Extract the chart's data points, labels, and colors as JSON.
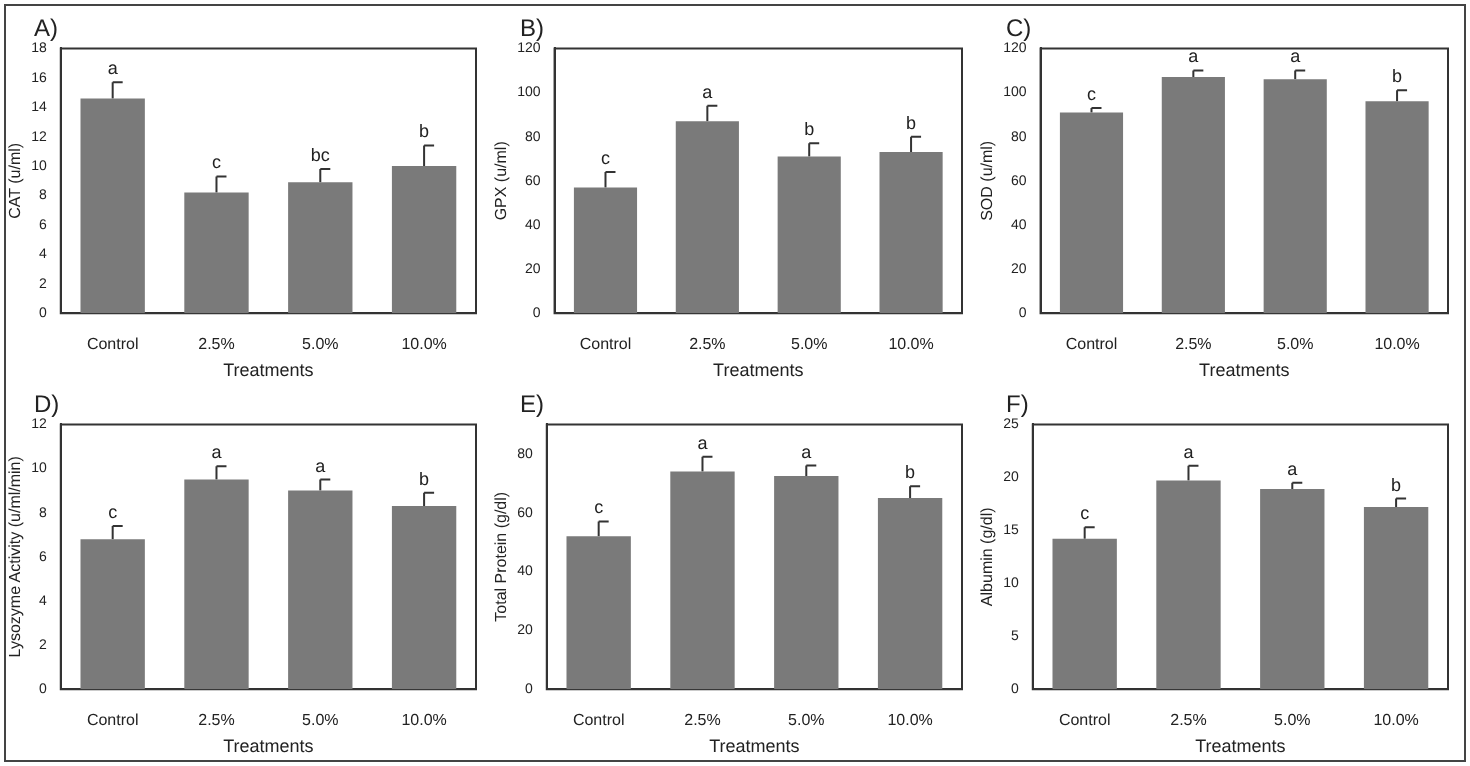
{
  "chart_data": [
    {
      "type": "bar",
      "title": "A)",
      "xlabel": "Treatments",
      "ylabel": "CAT (u/ml)",
      "categories": [
        "Control",
        "2.5%",
        "5.0%",
        "10.0%"
      ],
      "values": [
        14.6,
        8.2,
        8.9,
        10.0
      ],
      "errors": [
        [
          14.6,
          15.7
        ],
        [
          8.2,
          9.3
        ],
        [
          8.9,
          9.8
        ],
        [
          10.0,
          11.4
        ]
      ],
      "color": "#7a7a7a",
      "ylim": [
        0,
        18
      ],
      "yticks": [
        0,
        2,
        4,
        6,
        8,
        10,
        12,
        14,
        16,
        18
      ],
      "grid": false,
      "annotations": [
        {
          "text": "a",
          "x": "Control",
          "y": 15.7
        },
        {
          "text": "c",
          "x": "2.5%",
          "y": 9.3
        },
        {
          "text": "bc",
          "x": "5.0%",
          "y": 9.8
        },
        {
          "text": "b",
          "x": "10.0%",
          "y": 11.4
        }
      ]
    },
    {
      "type": "bar",
      "title": "B)",
      "xlabel": "Treatments",
      "ylabel": "GPX (u/ml)",
      "categories": [
        "Control",
        "2.5%",
        "5.0%",
        "10.0%"
      ],
      "values": [
        57,
        87,
        71,
        73
      ],
      "errors": [
        [
          57,
          64
        ],
        [
          87,
          94
        ],
        [
          71,
          77
        ],
        [
          73,
          80
        ]
      ],
      "color": "#7a7a7a",
      "ylim": [
        0,
        120
      ],
      "yticks": [
        0,
        20,
        40,
        60,
        80,
        100,
        120
      ],
      "grid": false,
      "annotations": [
        {
          "text": "c",
          "x": "Control",
          "y": 64
        },
        {
          "text": "a",
          "x": "2.5%",
          "y": 94
        },
        {
          "text": "b",
          "x": "5.0%",
          "y": 77
        },
        {
          "text": "b",
          "x": "10.0%",
          "y": 80
        }
      ]
    },
    {
      "type": "bar",
      "title": "C)",
      "xlabel": "Treatments",
      "ylabel": "SOD (u/ml)",
      "categories": [
        "Control",
        "2.5%",
        "5.0%",
        "10.0%"
      ],
      "values": [
        91,
        107,
        106,
        96
      ],
      "errors": [
        [
          91,
          93
        ],
        [
          107,
          110
        ],
        [
          106,
          110
        ],
        [
          96,
          101
        ]
      ],
      "color": "#7a7a7a",
      "ylim": [
        0,
        120
      ],
      "yticks": [
        0,
        20,
        40,
        60,
        80,
        100,
        120
      ],
      "grid": false,
      "annotations": [
        {
          "text": "c",
          "x": "Control",
          "y": 93
        },
        {
          "text": "a",
          "x": "2.5%",
          "y": 110
        },
        {
          "text": "a",
          "x": "5.0%",
          "y": 110
        },
        {
          "text": "b",
          "x": "10.0%",
          "y": 101
        }
      ]
    },
    {
      "type": "bar",
      "title": "D)",
      "xlabel": "Treatments",
      "ylabel": "Lysozyme Activity (u/ml/min)",
      "categories": [
        "Control",
        "2.5%",
        "5.0%",
        "10.0%"
      ],
      "values": [
        6.8,
        9.5,
        9.0,
        8.3
      ],
      "errors": [
        [
          6.8,
          7.4
        ],
        [
          9.5,
          10.1
        ],
        [
          9.0,
          9.5
        ],
        [
          8.3,
          8.9
        ]
      ],
      "color": "#7a7a7a",
      "ylim": [
        0,
        12
      ],
      "yticks": [
        0,
        2,
        4,
        6,
        8,
        10,
        12
      ],
      "grid": false,
      "annotations": [
        {
          "text": "c",
          "x": "Control",
          "y": 7.4
        },
        {
          "text": "a",
          "x": "2.5%",
          "y": 10.1
        },
        {
          "text": "a",
          "x": "5.0%",
          "y": 9.5
        },
        {
          "text": "b",
          "x": "10.0%",
          "y": 8.9
        }
      ]
    },
    {
      "type": "bar",
      "title": "E)",
      "xlabel": "Treatments",
      "ylabel": "Total Protein (g/dl)",
      "categories": [
        "Control",
        "2.5%",
        "5.0%",
        "10.0%"
      ],
      "values": [
        52,
        74,
        72.5,
        65
      ],
      "errors": [
        [
          52,
          57
        ],
        [
          74,
          79
        ],
        [
          72.5,
          76
        ],
        [
          65,
          69
        ]
      ],
      "color": "#7a7a7a",
      "ylim": [
        0,
        90
      ],
      "yticks": [
        0,
        20,
        40,
        60,
        80
      ],
      "grid": false,
      "annotations": [
        {
          "text": "c",
          "x": "Control",
          "y": 57
        },
        {
          "text": "a",
          "x": "2.5%",
          "y": 79
        },
        {
          "text": "a",
          "x": "5.0%",
          "y": 76
        },
        {
          "text": "b",
          "x": "10.0%",
          "y": 69
        }
      ]
    },
    {
      "type": "bar",
      "title": "F)",
      "xlabel": "Treatments",
      "ylabel": "Albumin (g/dl)",
      "categories": [
        "Control",
        "2.5%",
        "5.0%",
        "10.0%"
      ],
      "values": [
        14.2,
        19.7,
        18.9,
        17.2
      ],
      "errors": [
        [
          14.2,
          15.3
        ],
        [
          19.7,
          21.1
        ],
        [
          18.9,
          19.5
        ],
        [
          17.2,
          18.0
        ]
      ],
      "color": "#7a7a7a",
      "ylim": [
        0,
        25
      ],
      "yticks": [
        0,
        5,
        10,
        15,
        20,
        25
      ],
      "grid": false,
      "annotations": [
        {
          "text": "c",
          "x": "Control",
          "y": 15.3
        },
        {
          "text": "a",
          "x": "2.5%",
          "y": 21.1
        },
        {
          "text": "a",
          "x": "5.0%",
          "y": 19.5
        },
        {
          "text": "b",
          "x": "10.0%",
          "y": 18.0
        }
      ]
    }
  ]
}
